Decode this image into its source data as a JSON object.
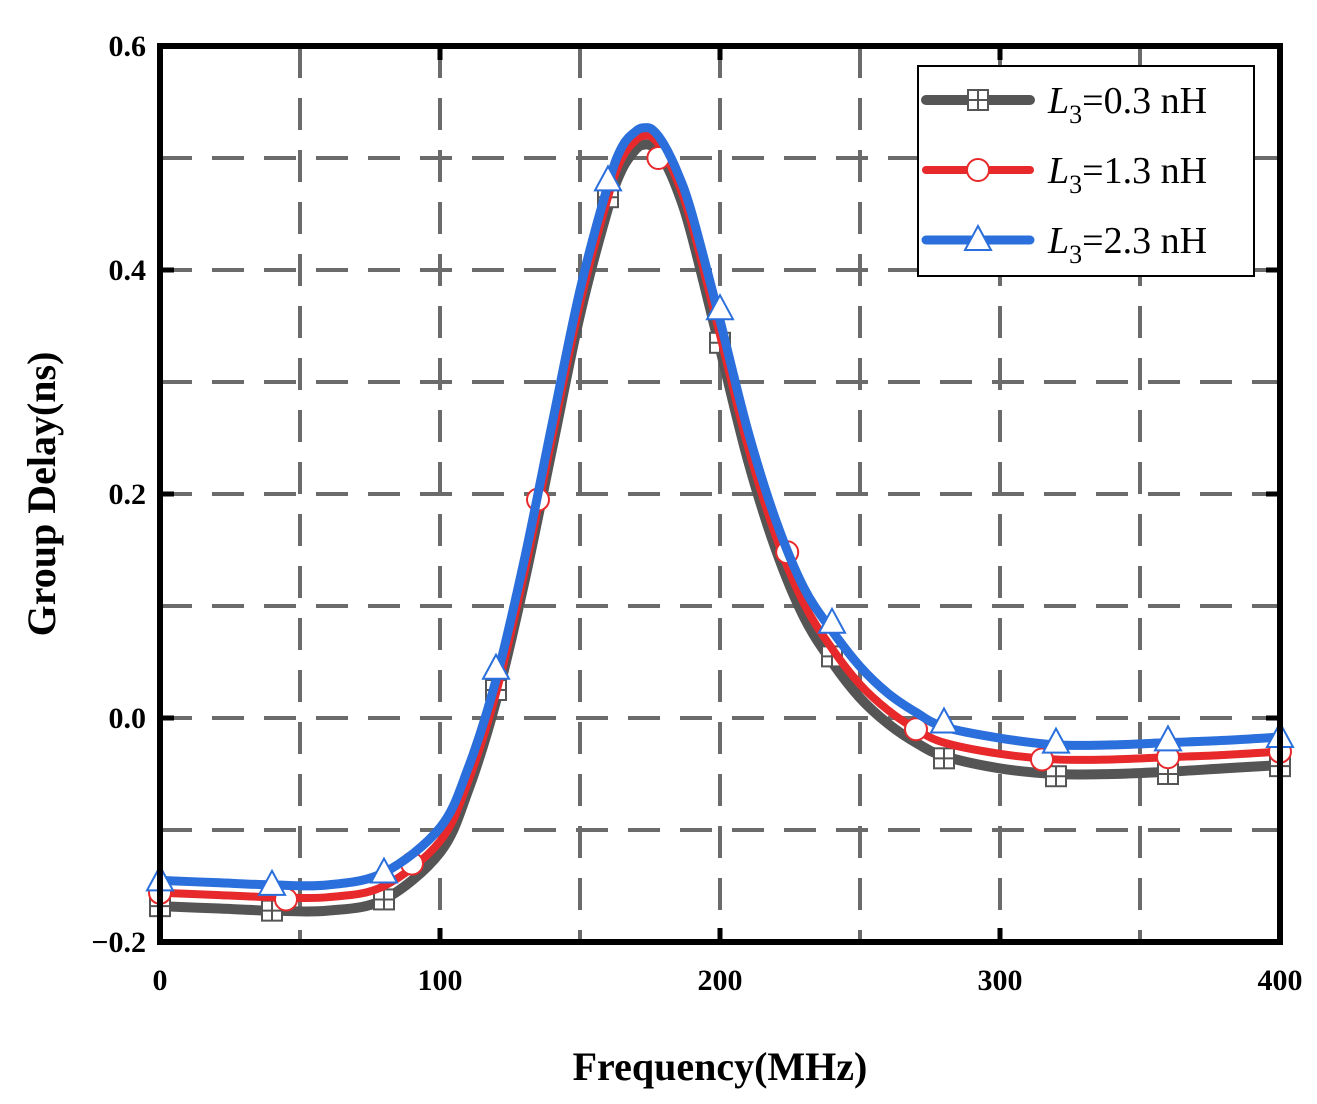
{
  "chart_data": {
    "type": "line",
    "title": "",
    "xlabel": "Frequency(MHz)",
    "ylabel": "Group Delay(ns)",
    "xlim": [
      0,
      400
    ],
    "ylim": [
      -0.2,
      0.6
    ],
    "x_ticks": [
      0,
      100,
      200,
      300,
      400
    ],
    "x_tick_labels": [
      "0",
      "100",
      "200",
      "300",
      "400"
    ],
    "y_ticks": [
      -0.2,
      0.0,
      0.2,
      0.4,
      0.6
    ],
    "y_tick_labels": [
      "−0.2",
      "0.0",
      "0.2",
      "0.4",
      "0.6"
    ],
    "grid": true,
    "grid_style": "dashed",
    "legend_position": "top-right",
    "series": [
      {
        "name": "L3=0.3 nH",
        "legend_var": "L",
        "legend_sub": "3",
        "legend_rest": "=0.3 nH",
        "color": "#555555",
        "marker": "square-plus",
        "x": [
          0,
          20,
          40,
          60,
          80,
          100,
          110,
          120,
          130,
          140,
          150,
          160,
          165,
          170,
          173,
          176,
          180,
          185,
          190,
          200,
          210,
          220,
          230,
          240,
          250,
          260,
          270,
          280,
          300,
          320,
          340,
          360,
          380,
          400
        ],
        "values": [
          -0.168,
          -0.17,
          -0.172,
          -0.172,
          -0.162,
          -0.12,
          -0.065,
          0.015,
          0.12,
          0.24,
          0.36,
          0.455,
          0.49,
          0.508,
          0.512,
          0.51,
          0.498,
          0.47,
          0.43,
          0.33,
          0.23,
          0.15,
          0.09,
          0.05,
          0.018,
          -0.005,
          -0.022,
          -0.034,
          -0.045,
          -0.05,
          -0.05,
          -0.048,
          -0.045,
          -0.042
        ],
        "marker_x": [
          0,
          40,
          80,
          120,
          160,
          200,
          240,
          280,
          320,
          360,
          400
        ],
        "marker_values": [
          -0.168,
          -0.172,
          -0.162,
          0.025,
          0.465,
          0.335,
          0.055,
          -0.036,
          -0.052,
          -0.05,
          -0.043
        ]
      },
      {
        "name": "L3=1.3 nH",
        "legend_var": "L",
        "legend_sub": "3",
        "legend_rest": "=1.3 nH",
        "color": "#e8292b",
        "marker": "circle",
        "x": [
          0,
          20,
          40,
          60,
          80,
          100,
          110,
          120,
          130,
          140,
          150,
          160,
          165,
          170,
          173,
          176,
          180,
          185,
          190,
          200,
          210,
          220,
          230,
          240,
          250,
          260,
          270,
          280,
          300,
          320,
          340,
          360,
          380,
          400
        ],
        "values": [
          -0.156,
          -0.158,
          -0.16,
          -0.16,
          -0.15,
          -0.11,
          -0.057,
          0.022,
          0.128,
          0.25,
          0.37,
          0.465,
          0.5,
          0.516,
          0.52,
          0.518,
          0.505,
          0.478,
          0.44,
          0.342,
          0.242,
          0.162,
          0.102,
          0.062,
          0.03,
          0.007,
          -0.01,
          -0.022,
          -0.032,
          -0.037,
          -0.037,
          -0.035,
          -0.033,
          -0.03
        ],
        "marker_x": [
          0,
          45,
          90,
          135,
          178,
          224,
          270,
          315,
          360,
          400
        ],
        "marker_values": [
          -0.156,
          -0.162,
          -0.13,
          0.195,
          0.5,
          0.148,
          -0.01,
          -0.037,
          -0.035,
          -0.03
        ]
      },
      {
        "name": "L3=2.3 nH",
        "legend_var": "L",
        "legend_sub": "3",
        "legend_rest": "=2.3 nH",
        "color": "#2a6fdb",
        "marker": "triangle",
        "x": [
          0,
          20,
          40,
          60,
          80,
          100,
          110,
          120,
          130,
          140,
          150,
          160,
          165,
          170,
          173,
          176,
          180,
          185,
          190,
          200,
          210,
          220,
          230,
          240,
          250,
          260,
          270,
          280,
          300,
          320,
          340,
          360,
          380,
          400
        ],
        "values": [
          -0.145,
          -0.147,
          -0.149,
          -0.149,
          -0.138,
          -0.098,
          -0.045,
          0.034,
          0.14,
          0.262,
          0.382,
          0.476,
          0.51,
          0.524,
          0.527,
          0.525,
          0.512,
          0.486,
          0.45,
          0.355,
          0.256,
          0.176,
          0.116,
          0.078,
          0.046,
          0.022,
          0.005,
          -0.008,
          -0.018,
          -0.024,
          -0.024,
          -0.022,
          -0.02,
          -0.017
        ],
        "marker_x": [
          0,
          40,
          80,
          120,
          160,
          200,
          240,
          280,
          320,
          360,
          400
        ],
        "marker_values": [
          -0.145,
          -0.149,
          -0.138,
          0.044,
          0.48,
          0.365,
          0.085,
          -0.004,
          -0.022,
          -0.02,
          -0.017
        ]
      }
    ]
  }
}
